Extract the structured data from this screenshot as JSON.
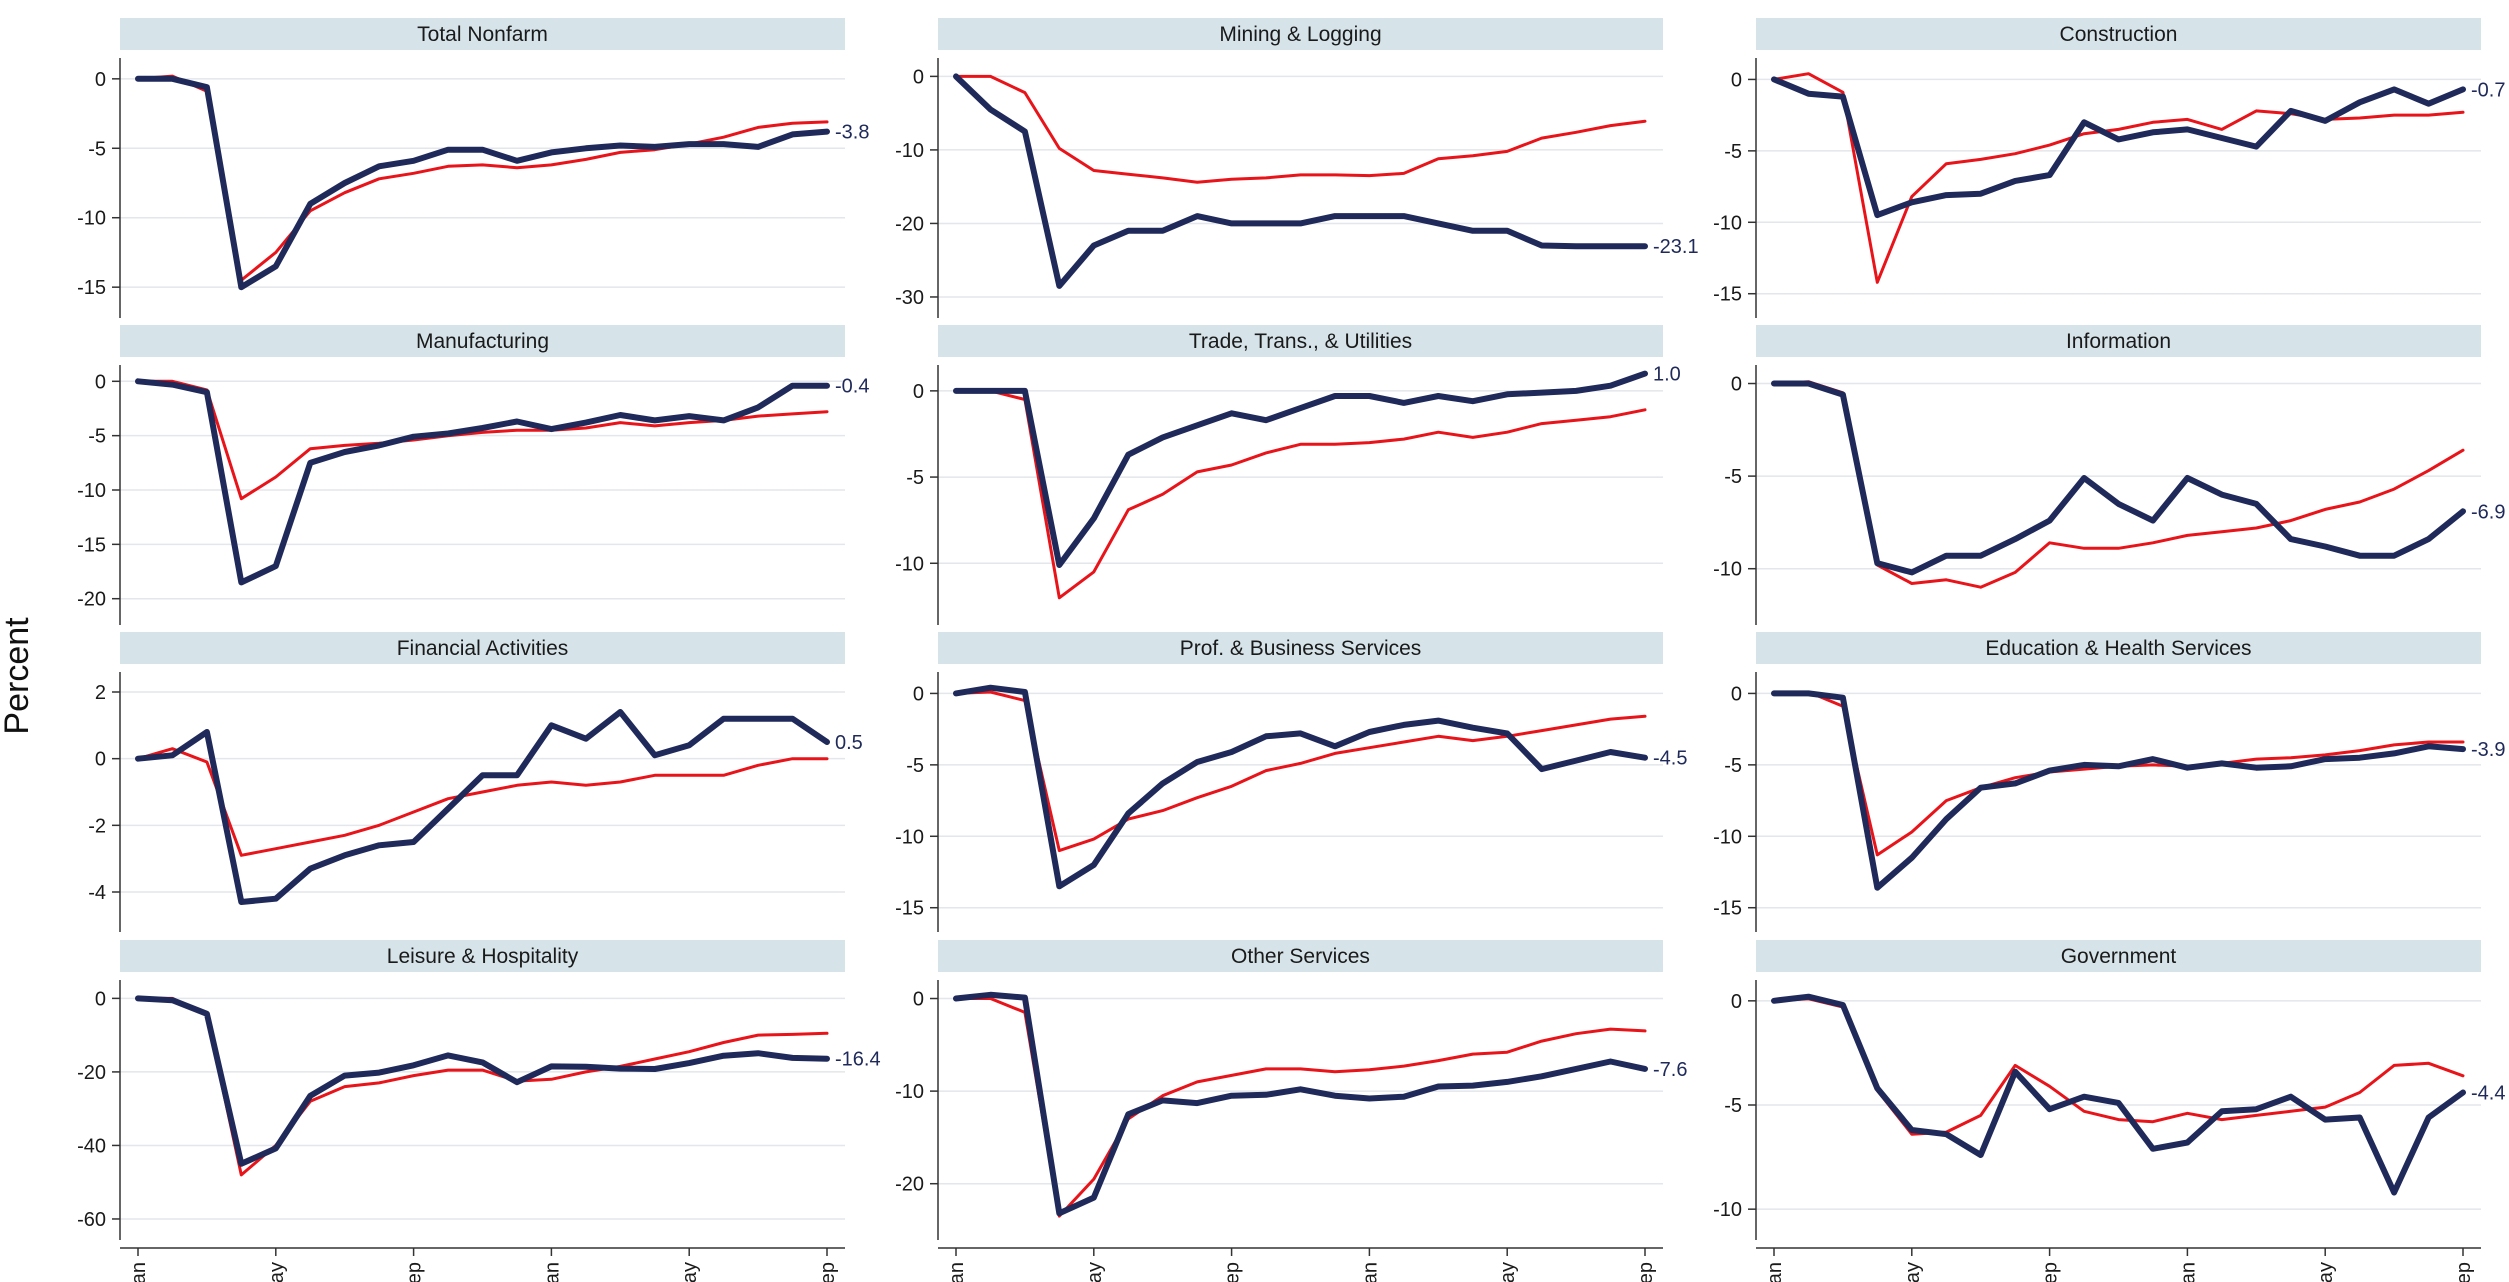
{
  "chart_data": {
    "type": "line",
    "ylabel": "Percent",
    "x_ticks": [
      "Jan",
      "May",
      "Sep",
      "Jan",
      "May",
      "Sep"
    ],
    "x_tick_index": [
      0,
      4,
      8,
      12,
      16,
      20
    ],
    "grid": "horizontal",
    "colors": {
      "bold_series": "#1f2a5a",
      "thin_series": "#e8141a",
      "title_strip": "#d6e4ea",
      "grid": "#e3e6ea"
    },
    "panels": [
      {
        "title": "Total Nonfarm",
        "ylim": [
          -16.5,
          1.5
        ],
        "yticks": [
          0,
          -5,
          -10,
          -15
        ],
        "end_label": "-3.8",
        "series": [
          {
            "values": [
              0,
              0,
              -0.6,
              -15.0,
              -13.5,
              -9.0,
              -7.5,
              -6.3,
              -5.9,
              -5.1,
              -5.1,
              -5.9,
              -5.3,
              -5.0,
              -4.8,
              -4.9,
              -4.7,
              -4.7,
              -4.9,
              -4.0,
              -3.8
            ]
          },
          {
            "values": [
              0,
              0.2,
              -0.9,
              -14.5,
              -12.5,
              -9.5,
              -8.2,
              -7.2,
              -6.8,
              -6.3,
              -6.2,
              -6.4,
              -6.2,
              -5.8,
              -5.3,
              -5.1,
              -4.7,
              -4.2,
              -3.5,
              -3.2,
              -3.1
            ]
          }
        ]
      },
      {
        "title": "Mining & Logging",
        "ylim": [
          -31.5,
          2.5
        ],
        "yticks": [
          0,
          -10,
          -20,
          -30
        ],
        "end_label": "-23.1",
        "series": [
          {
            "values": [
              0,
              -4.5,
              -7.5,
              -28.5,
              -23.0,
              -21.0,
              -21.0,
              -19.0,
              -20.0,
              -20.0,
              -20.0,
              -19.0,
              -19.0,
              -19.0,
              -20.0,
              -21.0,
              -21.0,
              -23.0,
              -23.1,
              -23.1,
              -23.1
            ]
          },
          {
            "values": [
              0,
              0,
              -2.2,
              -9.8,
              -12.8,
              -13.3,
              -13.8,
              -14.4,
              -14.0,
              -13.8,
              -13.4,
              -13.4,
              -13.5,
              -13.2,
              -11.2,
              -10.8,
              -10.2,
              -8.4,
              -7.6,
              -6.7,
              -6.1
            ]
          }
        ]
      },
      {
        "title": "Construction",
        "ylim": [
          -16.0,
          1.5
        ],
        "yticks": [
          0,
          -5,
          -10,
          -15
        ],
        "end_label": "-0.7",
        "series": [
          {
            "values": [
              0,
              -1.0,
              -1.2,
              -9.5,
              -8.6,
              -8.1,
              -8.0,
              -7.1,
              -6.7,
              -3.0,
              -4.2,
              -3.7,
              -3.5,
              -4.1,
              -4.7,
              -2.2,
              -2.9,
              -1.6,
              -0.7,
              -1.7,
              -0.7
            ]
          },
          {
            "values": [
              0,
              0.4,
              -0.9,
              -14.2,
              -8.2,
              -5.9,
              -5.6,
              -5.2,
              -4.6,
              -3.8,
              -3.5,
              -3.0,
              -2.8,
              -3.5,
              -2.2,
              -2.4,
              -2.8,
              -2.7,
              -2.5,
              -2.5,
              -2.3
            ]
          }
        ]
      },
      {
        "title": "Manufacturing",
        "ylim": [
          -21.5,
          1.5
        ],
        "yticks": [
          0,
          -5,
          -10,
          -15,
          -20
        ],
        "end_label": "-0.4",
        "series": [
          {
            "values": [
              0,
              -0.3,
              -1.0,
              -18.5,
              -17.0,
              -7.5,
              -6.5,
              -5.9,
              -5.1,
              -4.8,
              -4.3,
              -3.7,
              -4.4,
              -3.8,
              -3.1,
              -3.6,
              -3.2,
              -3.6,
              -2.4,
              -0.4,
              -0.4
            ]
          },
          {
            "values": [
              0,
              0,
              -0.8,
              -10.8,
              -8.8,
              -6.2,
              -5.9,
              -5.7,
              -5.4,
              -5.0,
              -4.7,
              -4.5,
              -4.5,
              -4.3,
              -3.8,
              -4.1,
              -3.8,
              -3.6,
              -3.2,
              -3.0,
              -2.8
            ]
          }
        ]
      },
      {
        "title": "Trade, Trans., & Utilities",
        "ylim": [
          -13.0,
          1.5
        ],
        "yticks": [
          0,
          -5,
          -10
        ],
        "end_label": "1.0",
        "series": [
          {
            "values": [
              0,
              0,
              0,
              -10.1,
              -7.4,
              -3.7,
              -2.7,
              -2.0,
              -1.3,
              -1.7,
              -1.0,
              -0.3,
              -0.3,
              -0.7,
              -0.3,
              -0.6,
              -0.2,
              -0.1,
              0,
              0.3,
              1.0
            ]
          },
          {
            "values": [
              0,
              0,
              -0.5,
              -12.0,
              -10.5,
              -6.9,
              -6.0,
              -4.7,
              -4.3,
              -3.6,
              -3.1,
              -3.1,
              -3.0,
              -2.8,
              -2.4,
              -2.7,
              -2.4,
              -1.9,
              -1.7,
              -1.5,
              -1.1
            ]
          }
        ]
      },
      {
        "title": "Information",
        "ylim": [
          -12.5,
          1.0
        ],
        "yticks": [
          0,
          -5,
          -10
        ],
        "end_label": "-6.9",
        "series": [
          {
            "values": [
              0,
              0,
              -0.6,
              -9.7,
              -10.2,
              -9.3,
              -9.3,
              -8.4,
              -7.4,
              -5.1,
              -6.5,
              -7.4,
              -5.1,
              -6.0,
              -6.5,
              -8.4,
              -8.8,
              -9.3,
              -9.3,
              -8.4,
              -6.9
            ]
          },
          {
            "values": [
              0,
              0.1,
              -0.5,
              -9.8,
              -10.8,
              -10.6,
              -11.0,
              -10.2,
              -8.6,
              -8.9,
              -8.9,
              -8.6,
              -8.2,
              -8.0,
              -7.8,
              -7.4,
              -6.8,
              -6.4,
              -5.7,
              -4.7,
              -3.6
            ]
          }
        ]
      },
      {
        "title": "Financial Activities",
        "ylim": [
          -4.9,
          2.6
        ],
        "yticks": [
          2,
          0,
          -2,
          -4
        ],
        "end_label": "0.5",
        "series": [
          {
            "values": [
              0,
              0.1,
              0.8,
              -4.3,
              -4.2,
              -3.3,
              -2.9,
              -2.6,
              -2.5,
              -1.5,
              -0.5,
              -0.5,
              1.0,
              0.6,
              1.4,
              0.1,
              0.4,
              1.2,
              1.2,
              1.2,
              0.5
            ]
          },
          {
            "values": [
              0,
              0.3,
              -0.1,
              -2.9,
              -2.7,
              -2.5,
              -2.3,
              -2.0,
              -1.6,
              -1.2,
              -1.0,
              -0.8,
              -0.7,
              -0.8,
              -0.7,
              -0.5,
              -0.5,
              -0.5,
              -0.2,
              0,
              0
            ]
          }
        ]
      },
      {
        "title": "Prof. & Business Services",
        "ylim": [
          -16.0,
          1.5
        ],
        "yticks": [
          0,
          -5,
          -10,
          -15
        ],
        "end_label": "-4.5",
        "series": [
          {
            "values": [
              0,
              0.4,
              0.1,
              -13.5,
              -12.0,
              -8.4,
              -6.3,
              -4.8,
              -4.1,
              -3.0,
              -2.8,
              -3.7,
              -2.7,
              -2.2,
              -1.9,
              -2.4,
              -2.8,
              -5.3,
              -4.7,
              -4.1,
              -4.5
            ]
          },
          {
            "values": [
              0,
              0.1,
              -0.5,
              -11.0,
              -10.2,
              -8.8,
              -8.2,
              -7.3,
              -6.5,
              -5.4,
              -4.9,
              -4.2,
              -3.8,
              -3.4,
              -3.0,
              -3.3,
              -3.0,
              -2.6,
              -2.2,
              -1.8,
              -1.6
            ]
          }
        ]
      },
      {
        "title": "Education & Health Services",
        "ylim": [
          -16.0,
          1.5
        ],
        "yticks": [
          0,
          -5,
          -10,
          -15
        ],
        "end_label": "-3.9",
        "series": [
          {
            "values": [
              0,
              0,
              -0.3,
              -13.6,
              -11.5,
              -8.8,
              -6.6,
              -6.3,
              -5.4,
              -5.0,
              -5.1,
              -4.6,
              -5.2,
              -4.9,
              -5.2,
              -5.1,
              -4.6,
              -4.5,
              -4.2,
              -3.7,
              -3.9
            ]
          },
          {
            "values": [
              0,
              0.1,
              -0.9,
              -11.3,
              -9.7,
              -7.5,
              -6.6,
              -5.9,
              -5.5,
              -5.3,
              -5.1,
              -5.0,
              -5.1,
              -4.9,
              -4.6,
              -4.5,
              -4.3,
              -4.0,
              -3.6,
              -3.4,
              -3.4
            ]
          }
        ]
      },
      {
        "title": "Leisure & Hospitality",
        "ylim": [
          -63.0,
          5.0
        ],
        "yticks": [
          0,
          -20,
          -40,
          -60
        ],
        "end_label": "-16.4",
        "series": [
          {
            "values": [
              0,
              -0.5,
              -4.2,
              -45.0,
              -40.8,
              -26.5,
              -21.0,
              -20.2,
              -18.2,
              -15.5,
              -17.4,
              -22.8,
              -18.5,
              -18.6,
              -19.1,
              -19.2,
              -17.6,
              -15.6,
              -14.9,
              -16.2,
              -16.4
            ]
          },
          {
            "values": [
              0,
              0,
              -4.6,
              -48.0,
              -40.0,
              -28.0,
              -24.0,
              -23.0,
              -21.0,
              -19.5,
              -19.5,
              -22.5,
              -22.0,
              -20.0,
              -18.5,
              -16.5,
              -14.5,
              -12.0,
              -10.0,
              -9.8,
              -9.5
            ]
          }
        ]
      },
      {
        "title": "Other Services",
        "ylim": [
          -25.0,
          2.0
        ],
        "yticks": [
          0,
          -10,
          -20
        ],
        "end_label": "-7.6",
        "series": [
          {
            "values": [
              0,
              0.4,
              0.1,
              -23.2,
              -21.5,
              -12.5,
              -11.0,
              -11.3,
              -10.5,
              -10.4,
              -9.8,
              -10.5,
              -10.8,
              -10.6,
              -9.5,
              -9.4,
              -9.0,
              -8.4,
              -7.6,
              -6.8,
              -7.6
            ]
          },
          {
            "values": [
              0,
              0,
              -1.5,
              -23.5,
              -19.5,
              -13.0,
              -10.5,
              -9.0,
              -8.3,
              -7.6,
              -7.6,
              -7.9,
              -7.7,
              -7.3,
              -6.7,
              -6.0,
              -5.8,
              -4.6,
              -3.8,
              -3.3,
              -3.5
            ]
          }
        ]
      },
      {
        "title": "Government",
        "ylim": [
          -11.0,
          1.0
        ],
        "yticks": [
          0,
          -5,
          -10
        ],
        "end_label": "-4.4",
        "series": [
          {
            "values": [
              0,
              0.2,
              -0.2,
              -4.2,
              -6.2,
              -6.4,
              -7.4,
              -3.4,
              -5.2,
              -4.6,
              -4.9,
              -7.1,
              -6.8,
              -5.3,
              -5.2,
              -4.6,
              -5.7,
              -5.6,
              -9.2,
              -5.6,
              -4.4
            ]
          },
          {
            "values": [
              0,
              0.1,
              -0.3,
              -4.3,
              -6.4,
              -6.3,
              -5.5,
              -3.1,
              -4.1,
              -5.3,
              -5.7,
              -5.8,
              -5.4,
              -5.7,
              -5.5,
              -5.3,
              -5.1,
              -4.4,
              -3.1,
              -3.0,
              -3.6
            ]
          }
        ]
      }
    ]
  }
}
